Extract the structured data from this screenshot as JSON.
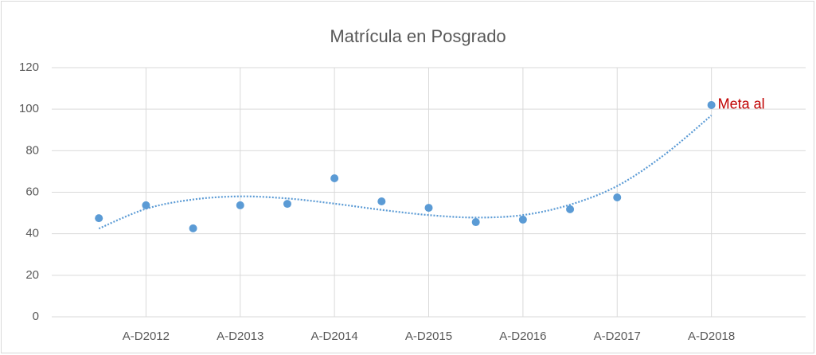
{
  "chart_data": {
    "type": "scatter",
    "title": "Matrícula en Posgrado",
    "categories": [
      null,
      "A-D2012",
      null,
      "A-D2013",
      null,
      "A-D2014",
      null,
      "A-D2015",
      null,
      "A-D2016",
      null,
      "A-D2017",
      null,
      "A-D2018"
    ],
    "values": [
      47.5,
      53.7,
      42.6,
      53.7,
      54.4,
      66.7,
      55.6,
      52.5,
      45.6,
      46.8,
      51.8,
      57.5,
      null,
      102
    ],
    "color": "#5b9bd5",
    "trendline": {
      "values": [
        42.5,
        52,
        56.5,
        58,
        57,
        54.5,
        51.5,
        49,
        47.8,
        49,
        54,
        63,
        78,
        97
      ],
      "color": "#5b9bd5"
    },
    "annotation": {
      "text": "Meta al",
      "index": 13,
      "color": "#c00000"
    },
    "ylim": [
      0,
      120
    ],
    "yticks": [
      0,
      20,
      40,
      60,
      80,
      100,
      120
    ],
    "grid": true
  }
}
